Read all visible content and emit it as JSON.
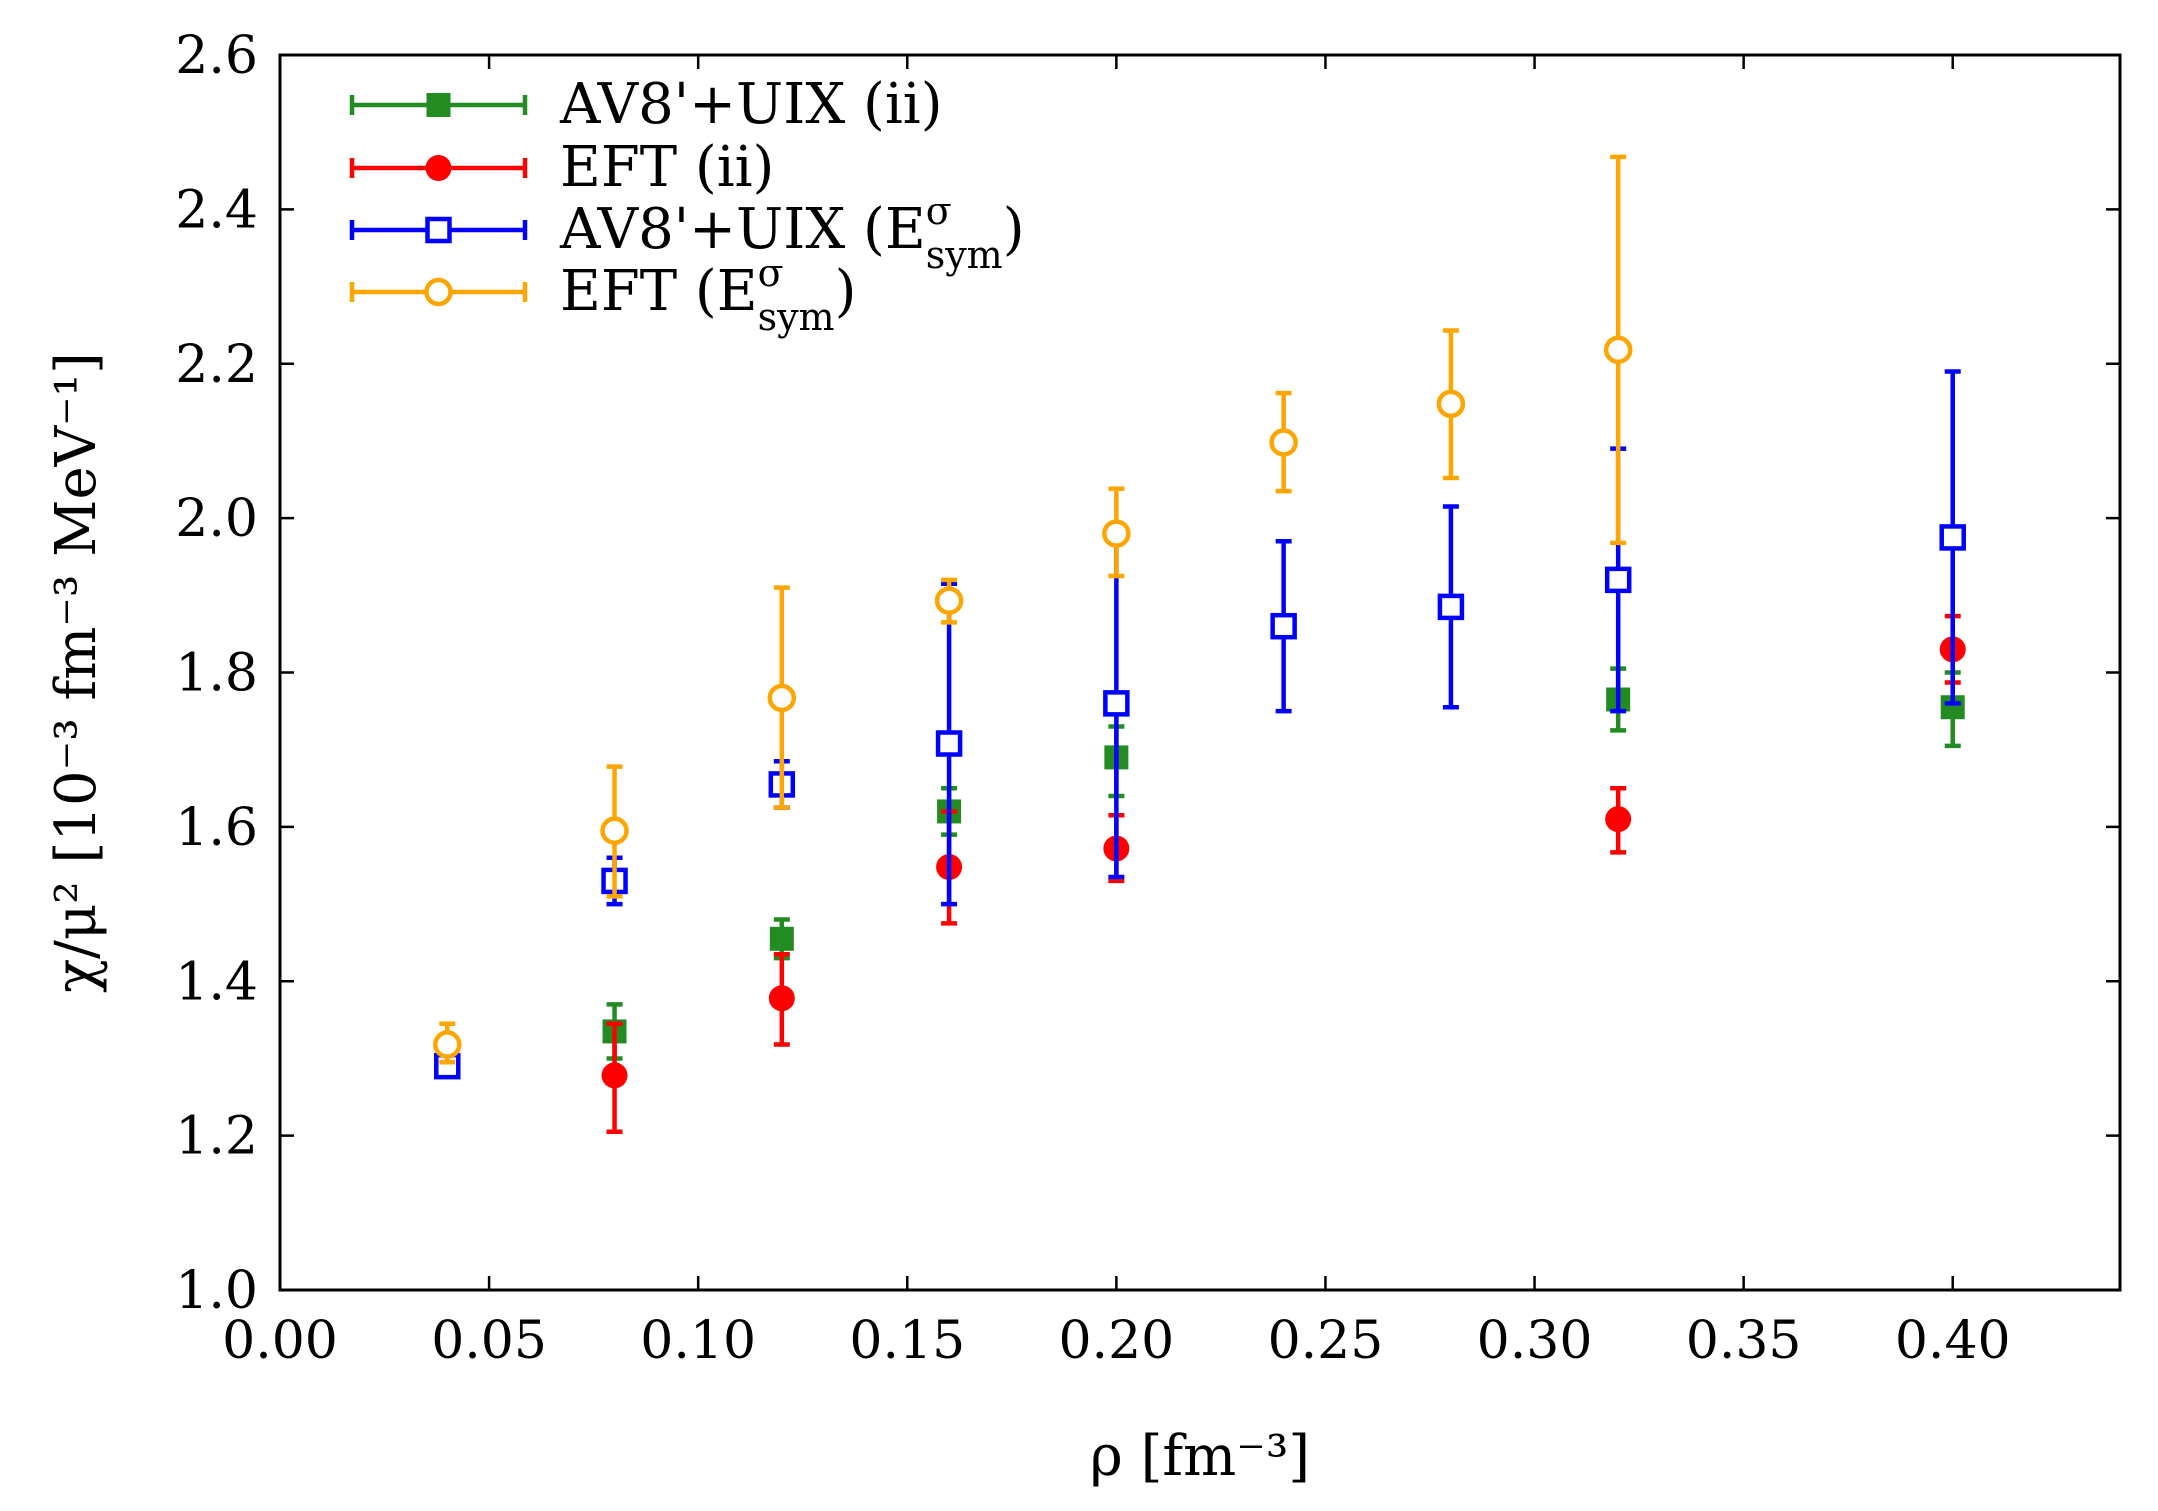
{
  "chart_data": {
    "type": "scatter",
    "title": "",
    "xlabel": "ρ [fm⁻³]",
    "ylabel": "χ/μ² [10⁻³ fm⁻³ MeV⁻¹]",
    "xlim": [
      0.0,
      0.44
    ],
    "ylim": [
      1.0,
      2.6
    ],
    "xticks": [
      0.0,
      0.05,
      0.1,
      0.15,
      0.2,
      0.25,
      0.3,
      0.35,
      0.4
    ],
    "xtick_labels": [
      "0.00",
      "0.05",
      "0.10",
      "0.15",
      "0.20",
      "0.25",
      "0.30",
      "0.35",
      "0.40"
    ],
    "yticks": [
      1.0,
      1.2,
      1.4,
      1.6,
      1.8,
      2.0,
      2.2,
      2.4,
      2.6
    ],
    "ytick_labels": [
      "1.0",
      "1.2",
      "1.4",
      "1.6",
      "1.8",
      "2.0",
      "2.2",
      "2.4",
      "2.6"
    ],
    "grid": false,
    "legend_position": "top-left",
    "series": [
      {
        "name": "AV8'+UIX (ii)",
        "color": "#228b22",
        "marker": "filled-square",
        "points": [
          {
            "x": 0.08,
            "y": 1.335,
            "ylo": 1.3,
            "yhi": 1.37
          },
          {
            "x": 0.12,
            "y": 1.455,
            "ylo": 1.43,
            "yhi": 1.48
          },
          {
            "x": 0.16,
            "y": 1.62,
            "ylo": 1.59,
            "yhi": 1.65
          },
          {
            "x": 0.2,
            "y": 1.69,
            "ylo": 1.64,
            "yhi": 1.73
          },
          {
            "x": 0.32,
            "y": 1.765,
            "ylo": 1.725,
            "yhi": 1.805
          },
          {
            "x": 0.4,
            "y": 1.755,
            "ylo": 1.705,
            "yhi": 1.8
          }
        ]
      },
      {
        "name": "EFT (ii)",
        "color": "#ff0000",
        "marker": "filled-circle",
        "points": [
          {
            "x": 0.08,
            "y": 1.278,
            "ylo": 1.205,
            "yhi": 1.345
          },
          {
            "x": 0.12,
            "y": 1.378,
            "ylo": 1.318,
            "yhi": 1.435
          },
          {
            "x": 0.16,
            "y": 1.548,
            "ylo": 1.475,
            "yhi": 1.62
          },
          {
            "x": 0.2,
            "y": 1.572,
            "ylo": 1.53,
            "yhi": 1.615
          },
          {
            "x": 0.32,
            "y": 1.61,
            "ylo": 1.567,
            "yhi": 1.65
          },
          {
            "x": 0.4,
            "y": 1.83,
            "ylo": 1.787,
            "yhi": 1.873
          }
        ]
      },
      {
        "name": "AV8'+UIX (E",
        "name_sup": "σ",
        "name_sub": "sym",
        "name_suffix": ")",
        "color": "#0000ff",
        "marker": "open-square",
        "points": [
          {
            "x": 0.04,
            "y": 1.29,
            "ylo": 1.28,
            "yhi": 1.3
          },
          {
            "x": 0.08,
            "y": 1.53,
            "ylo": 1.5,
            "yhi": 1.56
          },
          {
            "x": 0.12,
            "y": 1.655,
            "ylo": 1.625,
            "yhi": 1.685
          },
          {
            "x": 0.16,
            "y": 1.708,
            "ylo": 1.5,
            "yhi": 1.915
          },
          {
            "x": 0.2,
            "y": 1.76,
            "ylo": 1.535,
            "yhi": 1.985
          },
          {
            "x": 0.24,
            "y": 1.86,
            "ylo": 1.75,
            "yhi": 1.97
          },
          {
            "x": 0.28,
            "y": 1.885,
            "ylo": 1.755,
            "yhi": 2.015
          },
          {
            "x": 0.32,
            "y": 1.92,
            "ylo": 1.75,
            "yhi": 2.09
          },
          {
            "x": 0.4,
            "y": 1.975,
            "ylo": 1.76,
            "yhi": 2.19
          }
        ]
      },
      {
        "name": "EFT (E",
        "name_sup": "σ",
        "name_sub": "sym",
        "name_suffix": ")",
        "color": "#ffa500",
        "marker": "open-circle",
        "points": [
          {
            "x": 0.04,
            "y": 1.318,
            "ylo": 1.295,
            "yhi": 1.345
          },
          {
            "x": 0.08,
            "y": 1.595,
            "ylo": 1.51,
            "yhi": 1.678
          },
          {
            "x": 0.12,
            "y": 1.767,
            "ylo": 1.625,
            "yhi": 1.91
          },
          {
            "x": 0.16,
            "y": 1.893,
            "ylo": 1.865,
            "yhi": 1.92
          },
          {
            "x": 0.2,
            "y": 1.98,
            "ylo": 1.925,
            "yhi": 2.038
          },
          {
            "x": 0.24,
            "y": 2.098,
            "ylo": 2.035,
            "yhi": 2.162
          },
          {
            "x": 0.28,
            "y": 2.148,
            "ylo": 2.052,
            "yhi": 2.243
          },
          {
            "x": 0.32,
            "y": 2.218,
            "ylo": 1.968,
            "yhi": 2.468
          }
        ]
      }
    ]
  }
}
